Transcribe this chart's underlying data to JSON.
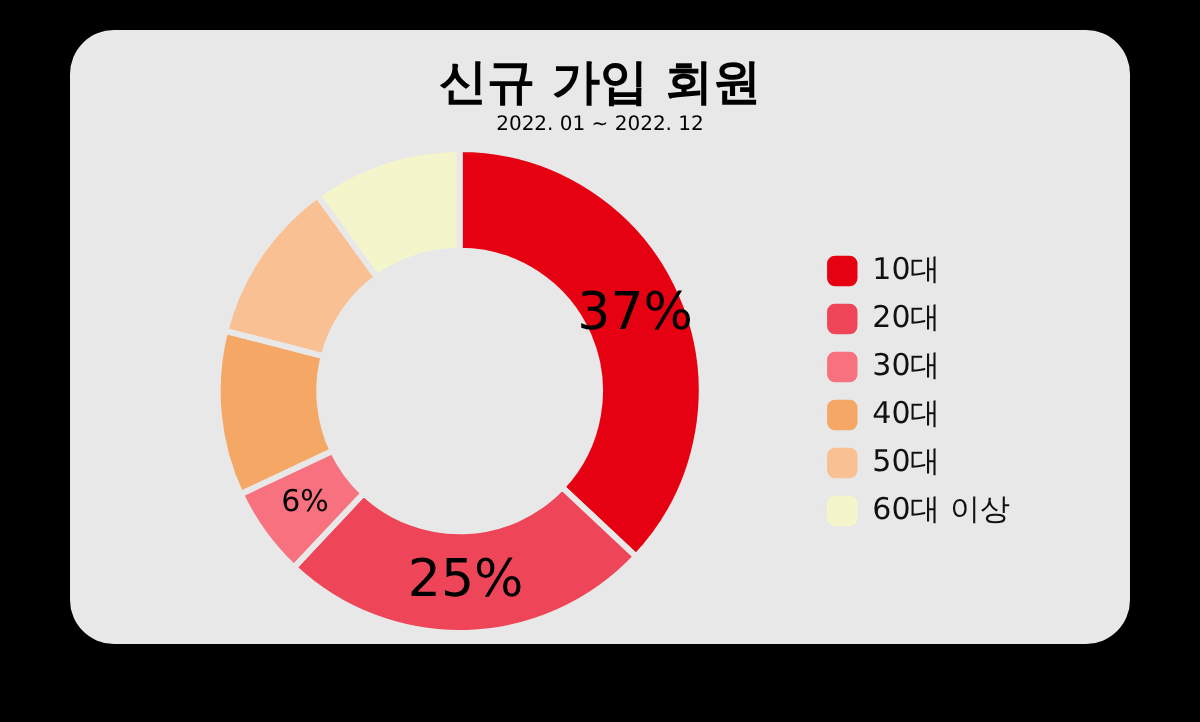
{
  "chart_data": {
    "type": "donut",
    "title": "신규 가입 회원",
    "subtitle": "2022. 01 ~ 2022. 12",
    "categories": [
      "10대",
      "20대",
      "30대",
      "40대",
      "50대",
      "60대 이상"
    ],
    "values": [
      37,
      25,
      6,
      11,
      11,
      10
    ],
    "colors": [
      "#e50012",
      "#ee4658",
      "#f7717f",
      "#f5a765",
      "#f9c193",
      "#f5f5cb"
    ],
    "value_labels": [
      "37%",
      "25%",
      "6%",
      null,
      null,
      null
    ],
    "legend": "right"
  }
}
